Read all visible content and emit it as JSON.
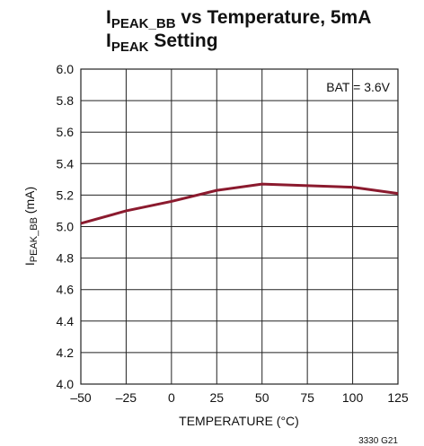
{
  "chart_data": {
    "type": "line",
    "title": [
      "I",
      "PEAK_BB",
      " vs Temperature, 5mA",
      "I",
      "PEAK",
      " Setting"
    ],
    "xlabel": "TEMPERATURE (°C)",
    "ylabel": [
      "I",
      "PEAK_BB",
      " (mA)"
    ],
    "annotation": "BAT = 3.6V",
    "footnote": "3330 G21",
    "x": [
      -50,
      -25,
      0,
      25,
      50,
      75,
      100,
      125
    ],
    "series": [
      {
        "name": "BAT = 3.6V",
        "color": "#8b1a2e",
        "values": [
          5.02,
          5.1,
          5.16,
          5.23,
          5.27,
          5.26,
          5.25,
          5.21
        ]
      }
    ],
    "xlim": [
      -50,
      125
    ],
    "xticks": [
      {
        "value": -50,
        "label": "–50"
      },
      {
        "value": -25,
        "label": "–25"
      },
      0,
      25,
      50,
      75,
      100,
      125
    ],
    "ylim": [
      4,
      6
    ],
    "yticks": [
      {
        "value": 4,
        "label": "4.0"
      },
      4.2,
      4.4,
      4.6,
      4.8,
      {
        "value": 5,
        "label": "5.0"
      },
      5.2,
      5.4,
      5.6,
      5.8,
      {
        "value": 6,
        "label": "6.0"
      }
    ],
    "grid": true
  }
}
